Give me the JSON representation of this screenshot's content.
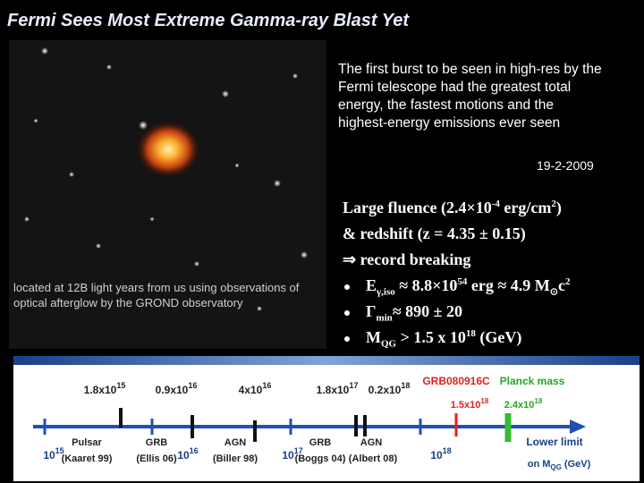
{
  "title": "Fermi Sees Most Extreme Gamma-ray Blast Yet",
  "image_caption": "located at 12B light years from us using observations of optical afterglow by the GROND observatory",
  "summary": "The first burst to be seen in high-res by the Fermi telescope had the greatest total energy, the fastest motions and the highest-energy emissions ever seen",
  "date": "19-2-2009",
  "points": [
    [
      "Large fluence (2.4×10",
      "-4",
      " erg/cm",
      "2",
      ")"
    ],
    [
      "& redshift (z = 4.35 ± 0.15)"
    ],
    [
      "⇒ record breaking"
    ],
    [
      "E",
      "γ,iso",
      " ≈ 8.8×10",
      "54",
      " erg ≈ 4.9 M",
      "⊙",
      "c",
      "2"
    ],
    [
      "Γ",
      "min",
      "≈ 890 ± 20"
    ],
    [
      "M",
      "QG",
      " > 1.5 x 10",
      "18",
      " (GeV)"
    ]
  ],
  "scale": {
    "bounds": [
      {
        "base": "1.8x10",
        "exp": "15"
      },
      {
        "base": "0.9x10",
        "exp": "16"
      },
      {
        "base": "4x10",
        "exp": "16"
      },
      {
        "base": "1.8x10",
        "exp": "17"
      },
      {
        "base": "0.2x10",
        "exp": "18"
      }
    ],
    "grb_label": "GRB080916C",
    "grb_value": {
      "base": "1.5x10",
      "exp": "18"
    },
    "planck_label": "Planck mass",
    "planck_value": {
      "base": "2.4x10",
      "exp": "18"
    },
    "decades": [
      {
        "base": "10",
        "exp": "15"
      },
      {
        "base": "10",
        "exp": "16"
      },
      {
        "base": "10",
        "exp": "17"
      },
      {
        "base": "10",
        "exp": "18"
      }
    ],
    "sources": [
      {
        "name": "Pulsar",
        "ref": "(Kaaret 99)"
      },
      {
        "name": "GRB",
        "ref": "(Ellis 06)"
      },
      {
        "name": "AGN",
        "ref": "(Biller 98)"
      },
      {
        "name": "GRB",
        "ref": "(Boggs 04)"
      },
      {
        "name": "AGN",
        "ref": "(Albert 08)"
      }
    ],
    "axis_title": [
      "Lower limit",
      "on M",
      "QG",
      " (GeV)"
    ]
  }
}
